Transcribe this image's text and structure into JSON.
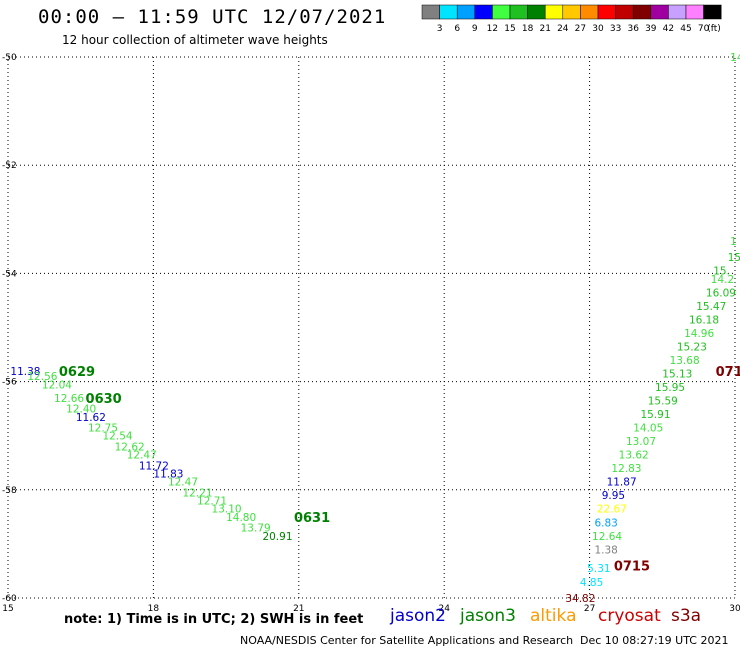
{
  "header": {
    "title": "00:00 — 11:59 UTC 12/07/2021",
    "subtitle": "12 hour collection of altimeter wave heights"
  },
  "legend": {
    "unit": "(ft)",
    "swatches": [
      {
        "color": "#808080",
        "label": "3"
      },
      {
        "color": "#00e5ff",
        "label": "6"
      },
      {
        "color": "#00a0ff",
        "label": "9"
      },
      {
        "color": "#0000ff",
        "label": "12"
      },
      {
        "color": "#40ff40",
        "label": "15"
      },
      {
        "color": "#20c020",
        "label": "18"
      },
      {
        "color": "#008000",
        "label": "21"
      },
      {
        "color": "#ffff00",
        "label": "24"
      },
      {
        "color": "#ffc800",
        "label": "27"
      },
      {
        "color": "#ff8c00",
        "label": "30"
      },
      {
        "color": "#ff0000",
        "label": "33"
      },
      {
        "color": "#c00000",
        "label": "36"
      },
      {
        "color": "#800000",
        "label": "39"
      },
      {
        "color": "#a000a0",
        "label": "42"
      },
      {
        "color": "#c8a0ff",
        "label": "45"
      },
      {
        "color": "#ff80ff",
        "label": "70"
      },
      {
        "color": "#000000",
        "label": ""
      }
    ]
  },
  "axes": {
    "x_ticks": [
      "15",
      "18",
      "21",
      "24",
      "27",
      "30"
    ],
    "y_ticks": [
      "-50",
      "-52",
      "-54",
      "-56",
      "-58",
      "-60"
    ],
    "xlim": [
      15,
      30
    ],
    "ylim": [
      -60,
      -50
    ]
  },
  "footer": {
    "note": "note: 1) Time is in UTC; 2) SWH is in feet",
    "satellites": [
      {
        "name": "jason2",
        "color": "#0000cc"
      },
      {
        "name": "jason3",
        "color": "#008000"
      },
      {
        "name": "altika",
        "color": "#ff9900"
      },
      {
        "name": "cryosat",
        "color": "#cc0000"
      },
      {
        "name": "s3a",
        "color": "#800000"
      }
    ],
    "credit": "NOAA/NESDIS Center for Satellite Applications and Research",
    "timestamp": "Dec 10 08:27:19 UTC 2021"
  },
  "chart_data": {
    "type": "scatter",
    "xlim": [
      15,
      30
    ],
    "ylim": [
      -60,
      -50
    ],
    "grid": true,
    "time_labels": [
      {
        "text": "0629",
        "x": 16.05,
        "y": -55.8,
        "color": "#008000"
      },
      {
        "text": "0630",
        "x": 16.6,
        "y": -56.3,
        "color": "#008000"
      },
      {
        "text": "0631",
        "x": 20.9,
        "y": -58.5,
        "color": "#008000"
      },
      {
        "text": "0715",
        "x": 27.5,
        "y": -59.4,
        "color": "#800000"
      },
      {
        "text": "071",
        "x": 29.6,
        "y": -55.8,
        "color": "#800000"
      }
    ],
    "points": [
      {
        "text": "11.38",
        "x": 15.05,
        "y": -55.8,
        "color": "#0000cc"
      },
      {
        "text": "12.56",
        "x": 15.4,
        "y": -55.9,
        "color": "#40e040"
      },
      {
        "text": "12.04",
        "x": 15.7,
        "y": -56.05,
        "color": "#40e040"
      },
      {
        "text": "12.66",
        "x": 15.95,
        "y": -56.3,
        "color": "#40e040"
      },
      {
        "text": "12.40",
        "x": 16.2,
        "y": -56.5,
        "color": "#40e040"
      },
      {
        "text": "11.62",
        "x": 16.4,
        "y": -56.65,
        "color": "#0000cc"
      },
      {
        "text": "12.75",
        "x": 16.65,
        "y": -56.85,
        "color": "#40e040"
      },
      {
        "text": "12.54",
        "x": 16.95,
        "y": -57.0,
        "color": "#40e040"
      },
      {
        "text": "12.62",
        "x": 17.2,
        "y": -57.2,
        "color": "#40e040"
      },
      {
        "text": "12.47",
        "x": 17.45,
        "y": -57.35,
        "color": "#40e040"
      },
      {
        "text": "11.72",
        "x": 17.7,
        "y": -57.55,
        "color": "#0000cc"
      },
      {
        "text": "11.83",
        "x": 18.0,
        "y": -57.7,
        "color": "#0000cc"
      },
      {
        "text": "12.47",
        "x": 18.3,
        "y": -57.85,
        "color": "#40e040"
      },
      {
        "text": "12.21",
        "x": 18.6,
        "y": -58.05,
        "color": "#40e040"
      },
      {
        "text": "12.71",
        "x": 18.9,
        "y": -58.2,
        "color": "#40e040"
      },
      {
        "text": "13.10",
        "x": 19.2,
        "y": -58.35,
        "color": "#40e040"
      },
      {
        "text": "14.80",
        "x": 19.5,
        "y": -58.5,
        "color": "#40e040"
      },
      {
        "text": "13.79",
        "x": 19.8,
        "y": -58.7,
        "color": "#40e040"
      },
      {
        "text": "20.91",
        "x": 20.25,
        "y": -58.85,
        "color": "#008000"
      },
      {
        "text": "14",
        "x": 29.9,
        "y": -50.0,
        "color": "#40e040"
      },
      {
        "text": "1",
        "x": 29.9,
        "y": -53.4,
        "color": "#40e040"
      },
      {
        "text": "15",
        "x": 29.85,
        "y": -53.7,
        "color": "#20c020"
      },
      {
        "text": "15.",
        "x": 29.55,
        "y": -53.95,
        "color": "#20c020"
      },
      {
        "text": "14.2",
        "x": 29.5,
        "y": -54.1,
        "color": "#40e040"
      },
      {
        "text": "16.09",
        "x": 29.4,
        "y": -54.35,
        "color": "#20c020"
      },
      {
        "text": "15.47",
        "x": 29.2,
        "y": -54.6,
        "color": "#20c020"
      },
      {
        "text": "16.18",
        "x": 29.05,
        "y": -54.85,
        "color": "#20c020"
      },
      {
        "text": "14.96",
        "x": 28.95,
        "y": -55.1,
        "color": "#40e040"
      },
      {
        "text": "15.23",
        "x": 28.8,
        "y": -55.35,
        "color": "#20c020"
      },
      {
        "text": "13.68",
        "x": 28.65,
        "y": -55.6,
        "color": "#40e040"
      },
      {
        "text": "15.13",
        "x": 28.5,
        "y": -55.85,
        "color": "#20c020"
      },
      {
        "text": "15.95",
        "x": 28.35,
        "y": -56.1,
        "color": "#20c020"
      },
      {
        "text": "15.59",
        "x": 28.2,
        "y": -56.35,
        "color": "#20c020"
      },
      {
        "text": "15.91",
        "x": 28.05,
        "y": -56.6,
        "color": "#20c020"
      },
      {
        "text": "14.05",
        "x": 27.9,
        "y": -56.85,
        "color": "#40e040"
      },
      {
        "text": "13.07",
        "x": 27.75,
        "y": -57.1,
        "color": "#40e040"
      },
      {
        "text": "13.62",
        "x": 27.6,
        "y": -57.35,
        "color": "#40e040"
      },
      {
        "text": "12.83",
        "x": 27.45,
        "y": -57.6,
        "color": "#40e040"
      },
      {
        "text": "11.87",
        "x": 27.35,
        "y": -57.85,
        "color": "#0000cc"
      },
      {
        "text": "9.95",
        "x": 27.25,
        "y": -58.1,
        "color": "#0000cc"
      },
      {
        "text": "22.67",
        "x": 27.15,
        "y": -58.35,
        "color": "#ffff00"
      },
      {
        "text": "6.83",
        "x": 27.1,
        "y": -58.6,
        "color": "#00a0ff"
      },
      {
        "text": "12.64",
        "x": 27.05,
        "y": -58.85,
        "color": "#40e040"
      },
      {
        "text": "1.38",
        "x": 27.1,
        "y": -59.1,
        "color": "#808080"
      },
      {
        "text": "5.31",
        "x": 26.95,
        "y": -59.45,
        "color": "#00e5ff"
      },
      {
        "text": "4.85",
        "x": 26.8,
        "y": -59.7,
        "color": "#00e5ff"
      },
      {
        "text": "34.82",
        "x": 26.5,
        "y": -60.0,
        "color": "#800000"
      }
    ]
  }
}
